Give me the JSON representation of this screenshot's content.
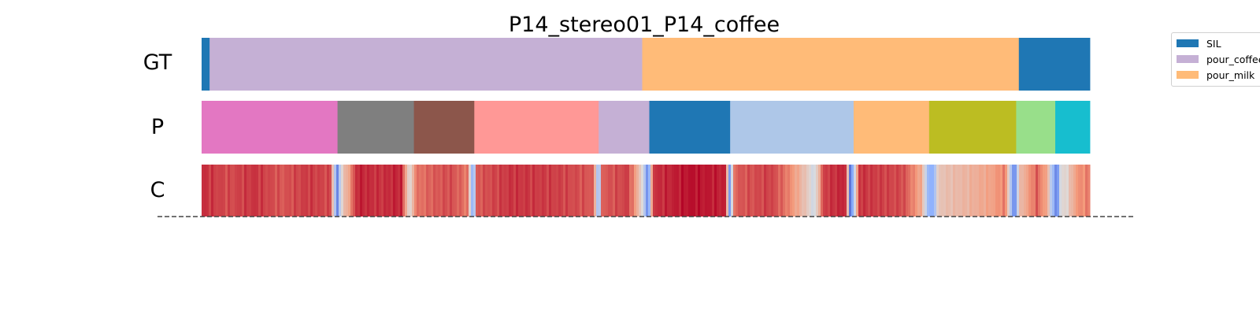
{
  "chart_data": {
    "type": "segmentation",
    "title": "P14_stereo01_P14_coffee",
    "x_range": [
      0,
      1
    ],
    "rows": [
      {
        "label": "GT",
        "segments": [
          {
            "start": 0.0,
            "end": 0.009,
            "color": "#1f77b4",
            "action": "SIL"
          },
          {
            "start": 0.009,
            "end": 0.496,
            "color": "#c5b0d5",
            "action": "pour_coffee"
          },
          {
            "start": 0.496,
            "end": 0.92,
            "color": "#ffbb78",
            "action": "pour_milk"
          },
          {
            "start": 0.92,
            "end": 1.0,
            "color": "#1f77b4",
            "action": "SIL"
          }
        ]
      },
      {
        "label": "P",
        "segments": [
          {
            "start": 0.0,
            "end": 0.153,
            "color": "#e377c2"
          },
          {
            "start": 0.153,
            "end": 0.239,
            "color": "#7f7f7f"
          },
          {
            "start": 0.239,
            "end": 0.307,
            "color": "#8c564b"
          },
          {
            "start": 0.307,
            "end": 0.447,
            "color": "#ff9896"
          },
          {
            "start": 0.447,
            "end": 0.504,
            "color": "#c5b0d5"
          },
          {
            "start": 0.504,
            "end": 0.595,
            "color": "#1f77b4"
          },
          {
            "start": 0.595,
            "end": 0.734,
            "color": "#aec7e8"
          },
          {
            "start": 0.734,
            "end": 0.819,
            "color": "#ffbb78"
          },
          {
            "start": 0.819,
            "end": 0.917,
            "color": "#bcbd22"
          },
          {
            "start": 0.917,
            "end": 0.961,
            "color": "#98df8a"
          },
          {
            "start": 0.961,
            "end": 1.0,
            "color": "#17becf"
          }
        ]
      },
      {
        "label": "C",
        "colormap": "coolwarm",
        "confidence_stops": [
          [
            0.0,
            0.93
          ],
          [
            0.03,
            0.88
          ],
          [
            0.06,
            0.92
          ],
          [
            0.09,
            0.86
          ],
          [
            0.12,
            0.91
          ],
          [
            0.145,
            0.88
          ],
          [
            0.15,
            0.4
          ],
          [
            0.152,
            0.05
          ],
          [
            0.155,
            0.35
          ],
          [
            0.158,
            0.55
          ],
          [
            0.165,
            0.7
          ],
          [
            0.175,
            0.95
          ],
          [
            0.2,
            0.92
          ],
          [
            0.225,
            0.95
          ],
          [
            0.232,
            0.6
          ],
          [
            0.236,
            0.5
          ],
          [
            0.24,
            0.8
          ],
          [
            0.26,
            0.85
          ],
          [
            0.28,
            0.88
          ],
          [
            0.3,
            0.8
          ],
          [
            0.303,
            0.4
          ],
          [
            0.306,
            0.2
          ],
          [
            0.31,
            0.86
          ],
          [
            0.35,
            0.92
          ],
          [
            0.4,
            0.9
          ],
          [
            0.44,
            0.86
          ],
          [
            0.445,
            0.5
          ],
          [
            0.447,
            0.05
          ],
          [
            0.45,
            0.85
          ],
          [
            0.48,
            0.9
          ],
          [
            0.49,
            0.7
          ],
          [
            0.496,
            0.5
          ],
          [
            0.5,
            0.3
          ],
          [
            0.503,
            0.1
          ],
          [
            0.508,
            0.92
          ],
          [
            0.55,
            0.98
          ],
          [
            0.59,
            0.95
          ],
          [
            0.593,
            0.4
          ],
          [
            0.595,
            0.15
          ],
          [
            0.6,
            0.85
          ],
          [
            0.64,
            0.9
          ],
          [
            0.66,
            0.8
          ],
          [
            0.68,
            0.6
          ],
          [
            0.69,
            0.45
          ],
          [
            0.7,
            0.9
          ],
          [
            0.725,
            0.95
          ],
          [
            0.728,
            0.5
          ],
          [
            0.73,
            0.1
          ],
          [
            0.735,
            0.4
          ],
          [
            0.74,
            0.92
          ],
          [
            0.79,
            0.88
          ],
          [
            0.81,
            0.7
          ],
          [
            0.818,
            0.3
          ],
          [
            0.822,
            0.2
          ],
          [
            0.83,
            0.6
          ],
          [
            0.86,
            0.65
          ],
          [
            0.89,
            0.72
          ],
          [
            0.905,
            0.8
          ],
          [
            0.912,
            0.3
          ],
          [
            0.915,
            0.05
          ],
          [
            0.92,
            0.6
          ],
          [
            0.94,
            0.85
          ],
          [
            0.952,
            0.7
          ],
          [
            0.958,
            0.3
          ],
          [
            0.963,
            0.1
          ],
          [
            0.967,
            0.5
          ],
          [
            0.975,
            0.55
          ],
          [
            0.985,
            0.75
          ],
          [
            1.0,
            0.8
          ]
        ]
      }
    ],
    "legend": {
      "placement": "top-right",
      "entries": [
        {
          "label": "SIL",
          "color": "#1f77b4"
        },
        {
          "label": "pour_coffee",
          "color": "#c5b0d5"
        },
        {
          "label": "pour_milk",
          "color": "#ffbb78"
        }
      ]
    },
    "baseline": "dashed"
  }
}
